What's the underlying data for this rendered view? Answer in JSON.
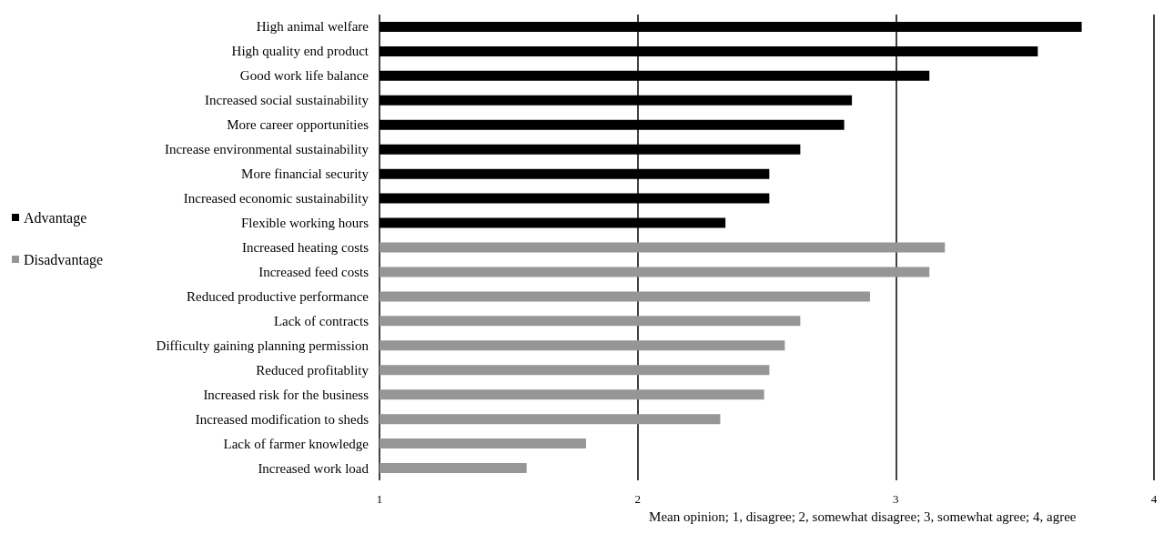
{
  "chart_data": {
    "type": "bar",
    "orientation": "horizontal",
    "xlabel": "Mean opinion; 1, disagree; 2, somewhat disagree; 3, somewhat agree; 4, agree",
    "categories": [
      "High animal welfare",
      "High quality end product",
      "Good work life balance",
      "Increased social sustainability",
      "More career opportunities",
      "Increase environmental sustainability",
      "More financial security",
      "Increased economic sustainability",
      "Flexible working hours",
      "Increased heating costs",
      "Increased feed costs",
      "Reduced productive performance",
      "Lack of contracts",
      "Difficulty gaining planning permission",
      "Reduced profitablity",
      "Increased risk for the business",
      "Increased modification to sheds",
      "Lack of farmer knowledge",
      "Increased work load"
    ],
    "series": [
      {
        "name": "Advantage",
        "color": "#000000",
        "values": [
          3.72,
          3.55,
          3.13,
          2.83,
          2.8,
          2.63,
          2.51,
          2.51,
          2.34,
          null,
          null,
          null,
          null,
          null,
          null,
          null,
          null,
          null,
          null
        ]
      },
      {
        "name": "Disadvantage",
        "color": "#969696",
        "values": [
          null,
          null,
          null,
          null,
          null,
          null,
          null,
          null,
          null,
          3.19,
          3.13,
          2.9,
          2.63,
          2.57,
          2.51,
          2.49,
          2.32,
          1.8,
          1.57
        ]
      }
    ],
    "xlim": [
      1,
      4
    ],
    "xticks": [
      1,
      2,
      3,
      4
    ],
    "grid": "x",
    "legend": "left"
  }
}
